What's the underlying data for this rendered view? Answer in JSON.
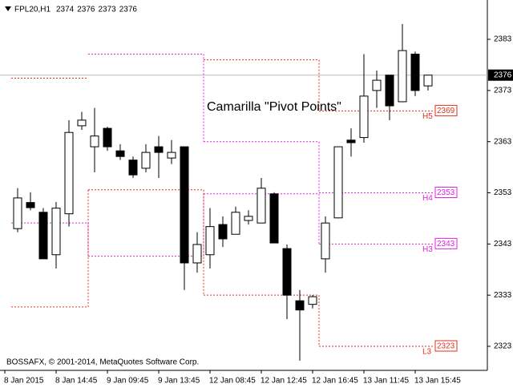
{
  "chart_data": {
    "type": "candlestick",
    "title": "FPL20,H1",
    "header_values": [
      2374,
      2376,
      2373,
      2376
    ],
    "annotation": "Camarilla \"Pivot Points\"",
    "footer": "BOSSAFX, © 2001-2014, MetaQuotes Software Corp.",
    "categories": [
      "8 Jan 2015",
      null,
      null,
      null,
      "8 Jan 14:45",
      null,
      null,
      null,
      "9 Jan 09:45",
      null,
      null,
      null,
      "9 Jan 13:45",
      null,
      null,
      null,
      "12 Jan 08:45",
      null,
      null,
      null,
      "12 Jan 12:45",
      null,
      null,
      null,
      "12 Jan 16:45",
      null,
      null,
      null,
      "13 Jan 11:45",
      null,
      null,
      null,
      "13 Jan 15:45"
    ],
    "open": [
      2346.0,
      2351.1,
      2349.2,
      2340.9,
      2348.9,
      2366.1,
      2362.0,
      2365.6,
      2361.2,
      2359.4,
      2357.8,
      2362.0,
      2359.8,
      2362.0,
      2339.3,
      2340.9,
      2346.8,
      2344.9,
      2347.6,
      2347.1,
      2352.8,
      2342.1,
      2331.9,
      2331.2,
      2340.1,
      2348.1,
      2363.3,
      2363.8,
      2373.0,
      2376.0,
      2370.8,
      2380.1,
      2373.9
    ],
    "high": [
      2353.9,
      2353.1,
      2350.0,
      2351.2,
      2367.2,
      2368.8,
      2369.6,
      2365.9,
      2362.5,
      2360.1,
      2362.5,
      2364.1,
      2363.3,
      2362.0,
      2345.3,
      2350.0,
      2348.4,
      2350.3,
      2349.6,
      2355.9,
      2353.1,
      2342.9,
      2334.0,
      2333.0,
      2348.4,
      2362.0,
      2365.6,
      2380.1,
      2376.9,
      2376.0,
      2386.0,
      2380.6,
      2376.0
    ],
    "low": [
      2345.3,
      2349.6,
      2340.1,
      2338.2,
      2346.4,
      2365.3,
      2357.0,
      2361.2,
      2359.4,
      2355.9,
      2357.0,
      2355.9,
      2358.6,
      2334.0,
      2337.4,
      2338.2,
      2342.4,
      2344.9,
      2346.8,
      2347.1,
      2343.2,
      2328.3,
      2320.2,
      2330.4,
      2337.4,
      2348.0,
      2360.1,
      2362.8,
      2369.6,
      2367.2,
      2370.7,
      2371.9,
      2373.0
    ],
    "close": [
      2352.0,
      2350.1,
      2340.1,
      2350.0,
      2364.8,
      2367.2,
      2364.1,
      2362.0,
      2360.1,
      2356.5,
      2360.9,
      2360.9,
      2360.9,
      2339.3,
      2342.9,
      2346.4,
      2344.0,
      2349.2,
      2348.4,
      2353.9,
      2343.2,
      2333.0,
      2330.1,
      2332.7,
      2347.1,
      2362.0,
      2362.8,
      2371.9,
      2375.0,
      2370.0,
      2380.8,
      2373.0,
      2376.0
    ],
    "ylim": [
      2318.3,
      2389.9
    ],
    "yticks": [
      2323,
      2333,
      2343,
      2353,
      2363,
      2373,
      2383
    ],
    "last_price": 2376,
    "pivot_lines": [
      {
        "name": "H5",
        "color": "#e03020",
        "values": [
          2375.4,
          2375.4,
          2375.4,
          2375.4,
          2375.4,
          2375.4,
          null,
          null,
          null,
          null,
          null,
          null,
          null,
          null,
          null,
          2379,
          2379,
          2379,
          2379,
          2379,
          2379,
          2379,
          2379,
          2379,
          2369,
          2369,
          2369,
          2369,
          2369,
          2369,
          2369,
          2369,
          2369
        ]
      },
      {
        "name": "H4",
        "color": "#e020e0",
        "values": [
          null,
          null,
          null,
          null,
          null,
          null,
          2380.1,
          2380.1,
          2380.1,
          2380.1,
          2380.1,
          2380.1,
          2380.1,
          2380.1,
          2380.1,
          2363,
          2363,
          2363,
          2363,
          2363,
          2363,
          2363,
          2363,
          2363,
          2353,
          2353,
          2353,
          2353,
          2353,
          2353,
          2353,
          2353,
          2353
        ]
      },
      {
        "name": "H3",
        "color": "#e020e0",
        "values": [
          2347.1,
          2347.1,
          2347.1,
          2347.1,
          2347.1,
          2347.1,
          2340.6,
          2340.6,
          2340.6,
          2340.6,
          2340.6,
          2340.6,
          2340.6,
          2340.6,
          2340.6,
          2352.8,
          2352.8,
          2352.8,
          2352.8,
          2352.8,
          2352.8,
          2352.8,
          2352.8,
          2352.8,
          2343,
          2343,
          2343,
          2343,
          2343,
          2343,
          2343,
          2343,
          2343
        ]
      },
      {
        "name": "L3",
        "color": "#e03020",
        "values": [
          2330.7,
          2330.7,
          2330.7,
          2330.7,
          2330.7,
          2330.7,
          2353.6,
          2353.6,
          2353.6,
          2353.6,
          2353.6,
          2353.6,
          2353.6,
          2353.6,
          2353.6,
          2333,
          2333,
          2333,
          2333,
          2333,
          2333,
          2333,
          2333,
          2333,
          2323,
          2323,
          2323,
          2323,
          2323,
          2323,
          2323,
          2323,
          2323
        ]
      }
    ]
  }
}
